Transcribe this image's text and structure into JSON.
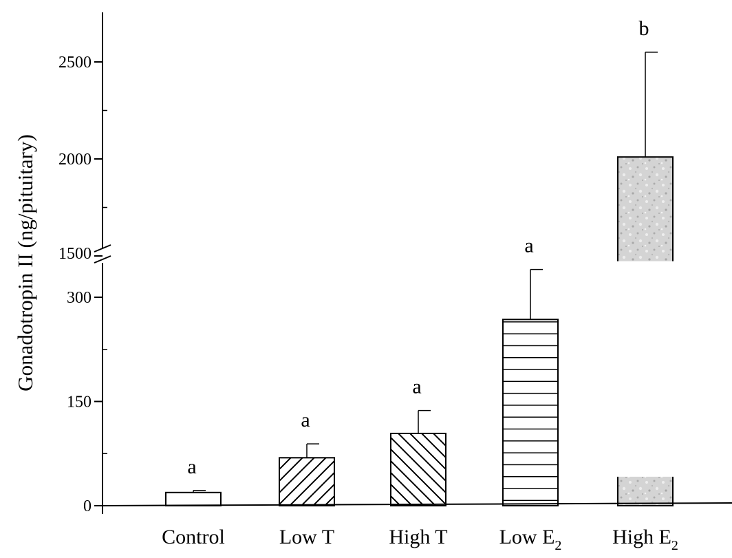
{
  "chart_data": {
    "type": "bar",
    "title": "",
    "xlabel": "",
    "ylabel": "Gonadotropin II (ng/pituitary)",
    "axis_break": {
      "lower_range": [
        0,
        350
      ],
      "upper_range": [
        1500,
        2700
      ],
      "lower_ticks": [
        "0",
        "150",
        "300"
      ],
      "upper_ticks": [
        "1500",
        "2000",
        "2500"
      ]
    },
    "categories": [
      {
        "label": "Control",
        "subscript": ""
      },
      {
        "label": "Low T",
        "subscript": ""
      },
      {
        "label": "High T",
        "subscript": ""
      },
      {
        "label": "Low E",
        "subscript": "2"
      },
      {
        "label": "High E",
        "subscript": "2"
      }
    ],
    "values": [
      19,
      69,
      104,
      268,
      2010
    ],
    "errors": [
      3,
      20,
      33,
      72,
      540
    ],
    "significance_letters": [
      "a",
      "a",
      "a",
      "a",
      "b"
    ],
    "fills": [
      "none",
      "diagonal-forward",
      "diagonal-back",
      "horizontal-lines",
      "grey-speckle"
    ],
    "colors": {
      "stroke": "#000000",
      "speckle": "#d2d2d2",
      "background": "#ffffff"
    },
    "grid": false,
    "legend": "none"
  }
}
